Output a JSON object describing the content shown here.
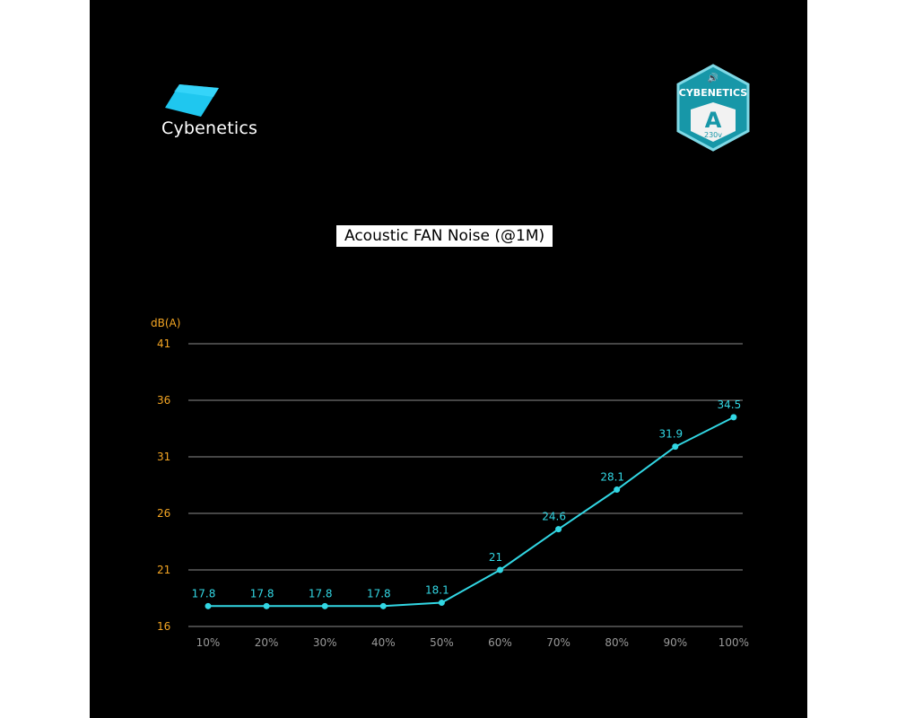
{
  "brand": {
    "name": "Cybenetics",
    "badge_title": "CYBENETICS",
    "badge_grade": "A",
    "badge_voltage": "230v"
  },
  "colors": {
    "line": "#32d7e4",
    "ytick": "#f5a623",
    "xtick": "#9a9a9a",
    "grid": "#8c8c8c",
    "background": "#000000"
  },
  "chart_data": {
    "type": "line",
    "title": "Acoustic FAN Noise (@1M)",
    "ylabel": "dB(A)",
    "xlabel": "",
    "categories": [
      "10%",
      "20%",
      "30%",
      "40%",
      "50%",
      "60%",
      "70%",
      "80%",
      "90%",
      "100%"
    ],
    "series": [
      {
        "values": [
          17.8,
          17.8,
          17.8,
          17.8,
          18.1,
          21,
          24.6,
          28.1,
          31.9,
          34.5
        ]
      }
    ],
    "data_labels": [
      "17.8",
      "17.8",
      "17.8",
      "17.8",
      "18.1",
      "21",
      "24.6",
      "28.1",
      "31.9",
      "34.5"
    ],
    "yticks": [
      16,
      21,
      26,
      31,
      36,
      41
    ],
    "ylim": [
      16,
      41
    ],
    "grid": true,
    "legend": "none"
  }
}
